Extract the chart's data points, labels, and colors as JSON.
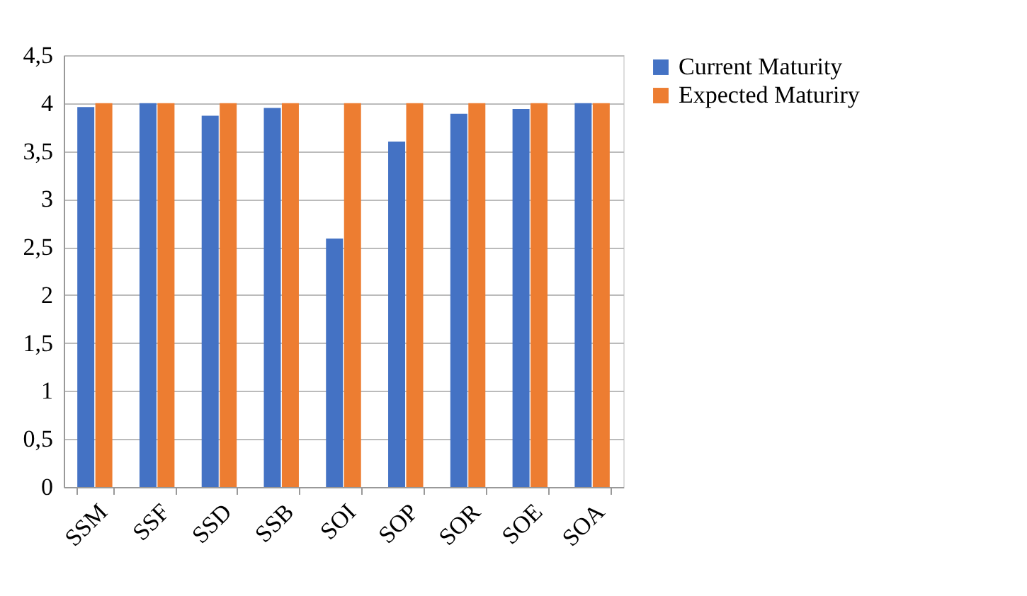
{
  "chart_data": {
    "type": "bar",
    "categories": [
      "SSM",
      "SSF",
      "SSD",
      "SSB",
      "SOI",
      "SOP",
      "SOR",
      "SOE",
      "SOA"
    ],
    "series": [
      {
        "name": "Current Maturity",
        "color": "#4472c4",
        "values": [
          3.96,
          4,
          3.87,
          3.95,
          2.59,
          3.6,
          3.89,
          3.94,
          4
        ]
      },
      {
        "name": "Expected Maturiry",
        "color": "#ed7d31",
        "values": [
          4,
          4,
          4,
          4,
          4,
          4,
          4,
          4,
          4
        ]
      }
    ],
    "ylim": [
      0,
      4.5
    ],
    "yticks": [
      {
        "value": 0,
        "label": "0"
      },
      {
        "value": 0.5,
        "label": "0,5"
      },
      {
        "value": 1,
        "label": "1"
      },
      {
        "value": 1.5,
        "label": "1,5"
      },
      {
        "value": 2,
        "label": "2"
      },
      {
        "value": 2.5,
        "label": "2,5"
      },
      {
        "value": 3,
        "label": "3"
      },
      {
        "value": 3.5,
        "label": "3,5"
      },
      {
        "value": 4,
        "label": "4"
      },
      {
        "value": 4.5,
        "label": "4,5"
      }
    ],
    "grid": "y",
    "legend": "right"
  }
}
